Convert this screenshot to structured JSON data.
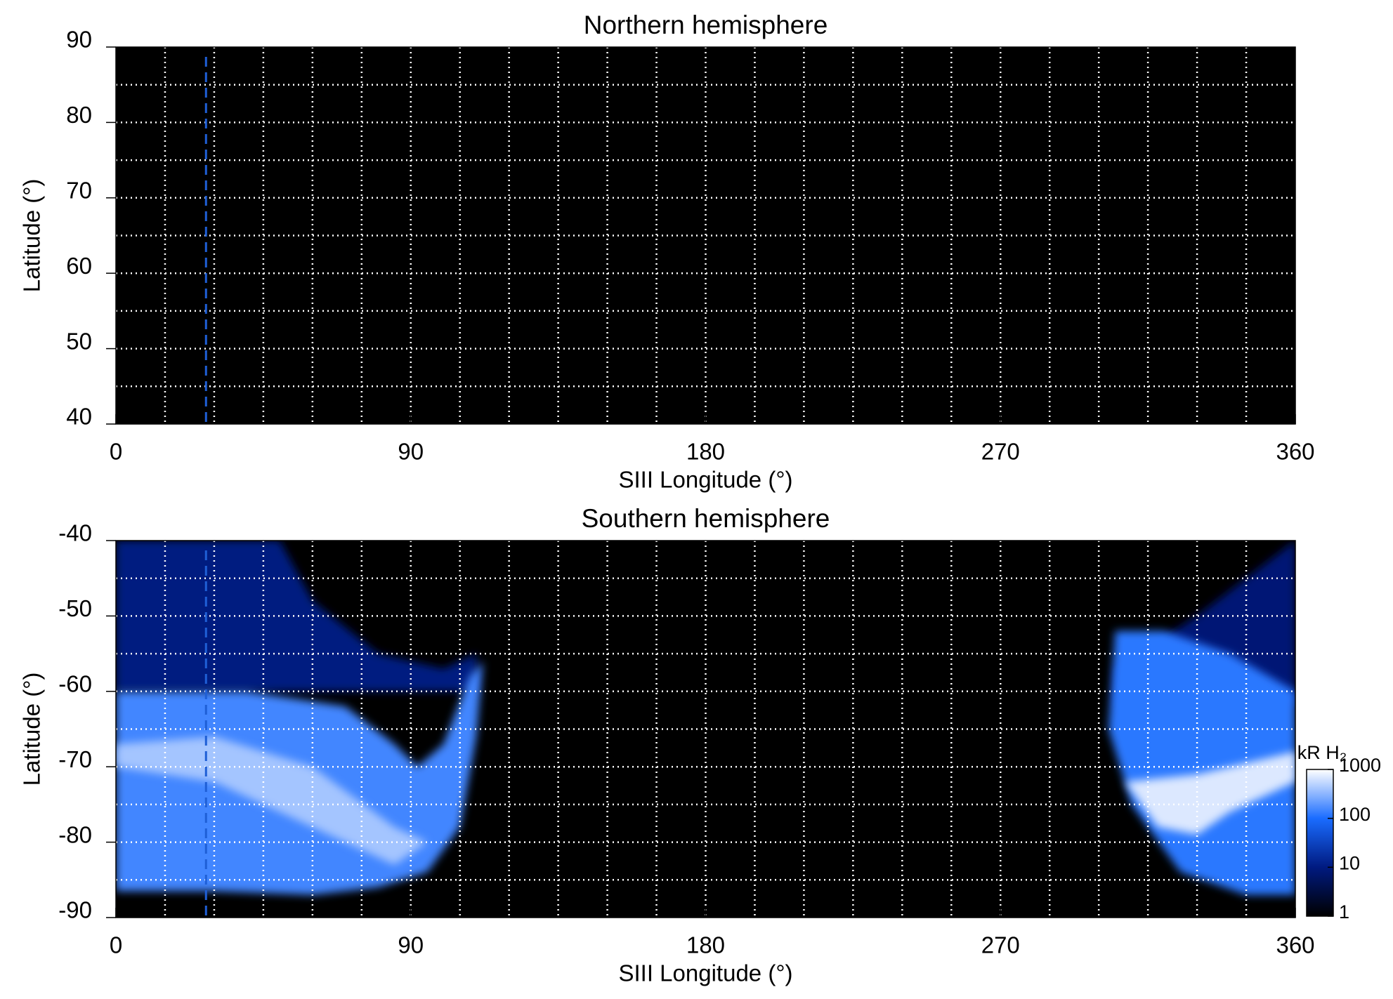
{
  "chart_data": [
    {
      "type": "map",
      "title": "Northern hemisphere",
      "xlabel": "SIII Longitude (°)",
      "ylabel": "Latitude (°)",
      "xlim": [
        0,
        360
      ],
      "xticks": [
        0,
        90,
        180,
        270,
        360
      ],
      "ylim": [
        40,
        90
      ],
      "yticks": [
        40,
        50,
        60,
        70,
        80,
        90
      ],
      "xgrid": [
        15,
        30,
        45,
        60,
        75,
        90,
        105,
        120,
        135,
        150,
        165,
        180,
        195,
        210,
        225,
        240,
        255,
        270,
        285,
        300,
        315,
        330,
        345
      ],
      "ygrid": [
        45,
        50,
        55,
        60,
        65,
        70,
        75,
        80,
        85
      ],
      "vline": 27.5,
      "vline_color": "#1f5fd6",
      "background": "#000000"
    },
    {
      "type": "map",
      "title": "Southern hemisphere",
      "xlabel": "SIII Longitude (°)",
      "ylabel": "Latitude (°)",
      "xlim": [
        0,
        360
      ],
      "xticks": [
        0,
        90,
        180,
        270,
        360
      ],
      "ylim": [
        -90,
        -40
      ],
      "yticks": [
        -90,
        -80,
        -70,
        -60,
        -50,
        -40
      ],
      "xgrid": [
        15,
        30,
        45,
        60,
        75,
        90,
        105,
        120,
        135,
        150,
        165,
        180,
        195,
        210,
        225,
        240,
        255,
        270,
        285,
        300,
        315,
        330,
        345
      ],
      "ygrid": [
        -85,
        -80,
        -75,
        -70,
        -65,
        -60,
        -55,
        -50,
        -45
      ],
      "vline": 27.5,
      "vline_color": "#1f5fd6",
      "background": "#000000",
      "regions": [
        {
          "lon": [
            0,
            50,
            60,
            80,
            100,
            110,
            110,
            0
          ],
          "lat": [
            -40,
            -40,
            -48,
            -55,
            -57,
            -55,
            -60,
            -60
          ],
          "intensity": 10
        },
        {
          "lon": [
            0,
            40,
            70,
            85,
            92,
            100,
            108,
            112,
            110,
            105,
            95,
            80,
            60,
            30,
            0
          ],
          "lat": [
            -60,
            -60,
            -62,
            -67,
            -70,
            -67,
            -58,
            -56,
            -66,
            -78,
            -84,
            -86,
            -87,
            -86.5,
            -86.5
          ],
          "intensity": 150
        },
        {
          "lon": [
            0,
            30,
            60,
            85,
            95,
            85,
            60,
            30,
            0
          ],
          "lat": [
            -67,
            -66,
            -70,
            -78,
            -80,
            -83,
            -78,
            -72,
            -70
          ],
          "intensity": 400
        },
        {
          "lon": [
            305,
            330,
            360,
            360,
            305
          ],
          "lat": [
            -57,
            -50,
            -40,
            -62,
            -62
          ],
          "intensity": 8
        },
        {
          "lon": [
            305,
            320,
            340,
            360,
            360,
            345,
            325,
            310,
            303
          ],
          "lat": [
            -52,
            -52,
            -55,
            -60,
            -87,
            -87,
            -84,
            -75,
            -65
          ],
          "intensity": 120
        },
        {
          "lon": [
            308,
            330,
            360,
            360,
            340,
            330,
            318
          ],
          "lat": [
            -72,
            -71,
            -68,
            -72,
            -76,
            -79,
            -78
          ],
          "intensity": 700
        }
      ],
      "colorbar": {
        "label": "kR H₂",
        "lim": [
          1,
          1000
        ],
        "ticks": [
          1,
          10,
          100,
          1000
        ],
        "log": true,
        "colors": [
          "#000000",
          "#001a80",
          "#1a6cff",
          "#ffffff"
        ]
      }
    }
  ]
}
